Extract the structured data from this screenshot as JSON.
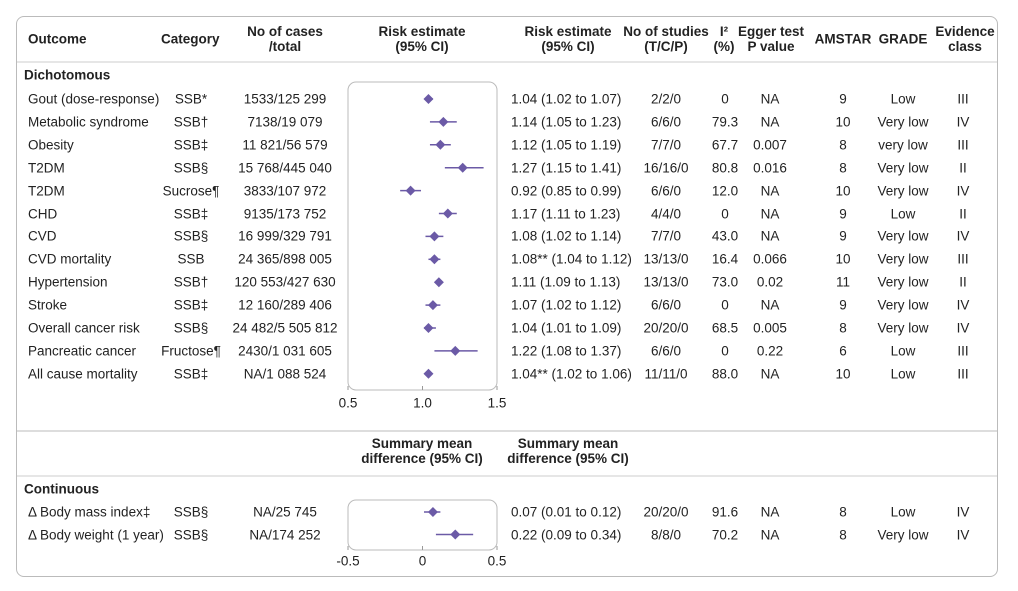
{
  "table": {
    "headers": [
      "Outcome",
      "Category",
      "No of cases\n/total",
      "Risk estimate\n(95% CI)",
      "Risk estimate\n(95% CI)",
      "No of studies\n(T/C/P)",
      "I²\n(%)",
      "Egger test\nP value",
      "AMSTAR",
      "GRADE",
      "Evidence\nclass"
    ],
    "sections": [
      {
        "title": "Dichotomous",
        "rows": [
          [
            "SSB*",
            "1533/125 299",
            "1.04 (1.02 to 1.07)",
            "2/2/0",
            "0",
            "NA",
            "9",
            "Low",
            "III"
          ],
          [
            "SSB†",
            "7138/19 079",
            "1.14 (1.05 to 1.23)",
            "6/6/0",
            "79.3",
            "NA",
            "10",
            "Very low",
            "IV"
          ],
          [
            "SSB‡",
            "11 821/56 579",
            "1.12 (1.05 to 1.19)",
            "7/7/0",
            "67.7",
            "0.007",
            "8",
            "very low",
            "III"
          ],
          [
            "SSB§",
            "15 768/445 040",
            "1.27 (1.15 to 1.41)",
            "16/16/0",
            "80.8",
            "0.016",
            "8",
            "Very low",
            "II"
          ],
          [
            "Sucrose¶",
            "3833/107 972",
            "0.92 (0.85 to 0.99)",
            "6/6/0",
            "12.0",
            "NA",
            "10",
            "Very low",
            "IV"
          ],
          [
            "SSB‡",
            "9135/173 752",
            "1.17 (1.11 to 1.23)",
            "4/4/0",
            "0",
            "NA",
            "9",
            "Low",
            "II"
          ],
          [
            "SSB§",
            "16 999/329 791",
            "1.08 (1.02 to 1.14)",
            "7/7/0",
            "43.0",
            "NA",
            "9",
            "Very low",
            "IV"
          ],
          [
            "SSB",
            "24 365/898 005",
            "1.08** (1.04 to 1.12)",
            "13/13/0",
            "16.4",
            "0.066",
            "10",
            "Very low",
            "III"
          ],
          [
            "SSB†",
            "120 553/427 630",
            "1.11 (1.09 to 1.13)",
            "13/13/0",
            "73.0",
            "0.02",
            "11",
            "Very low",
            "II"
          ],
          [
            "SSB‡",
            "12 160/289 406",
            "1.07 (1.02 to 1.12)",
            "6/6/0",
            "0",
            "NA",
            "9",
            "Very low",
            "IV"
          ],
          [
            "SSB§",
            "24 482/5 505 812",
            "1.04 (1.01 to 1.09)",
            "20/20/0",
            "68.5",
            "0.005",
            "8",
            "Very low",
            "IV"
          ],
          [
            "Fructose¶",
            "2430/1 031 605",
            "1.22 (1.08 to 1.37)",
            "6/6/0",
            "0",
            "0.22",
            "6",
            "Low",
            "III"
          ],
          [
            "SSB‡",
            "NA/1 088 524",
            "1.04** (1.02 to 1.06)",
            "11/11/0",
            "88.0",
            "NA",
            "10",
            "Low",
            "III"
          ]
        ]
      },
      {
        "title": "Continuous",
        "subheaders": [
          "Summary mean\ndifference (95% CI)",
          "Summary mean\ndifference (95% CI)"
        ],
        "rows": [
          [
            "SSB§",
            "NA/25 745",
            "0.07 (0.01 to 0.12)",
            "20/20/0",
            "91.6",
            "NA",
            "8",
            "Low",
            "IV"
          ],
          [
            "SSB§",
            "NA/174 252",
            "0.22 (0.09 to 0.34)",
            "8/8/0",
            "70.2",
            "NA",
            "8",
            "Very low",
            "IV"
          ]
        ]
      }
    ]
  },
  "chart_data": [
    {
      "type": "forest",
      "color": "#6b5aa6",
      "categories": [
        "Gout (dose-response)",
        "Metabolic syndrome",
        "Obesity",
        "T2DM",
        "T2DM",
        "CHD",
        "CVD",
        "CVD mortality",
        "Hypertension",
        "Stroke",
        "Overall cancer risk",
        "Pancreatic cancer",
        "All cause mortality"
      ],
      "values": [
        1.04,
        1.14,
        1.12,
        1.27,
        0.92,
        1.17,
        1.08,
        1.08,
        1.11,
        1.07,
        1.04,
        1.22,
        1.04
      ],
      "lower": [
        1.02,
        1.05,
        1.05,
        1.15,
        0.85,
        1.11,
        1.02,
        1.04,
        1.09,
        1.02,
        1.01,
        1.08,
        1.02
      ],
      "upper": [
        1.07,
        1.23,
        1.19,
        1.41,
        0.99,
        1.23,
        1.14,
        1.12,
        1.13,
        1.12,
        1.09,
        1.37,
        1.06
      ],
      "xlim": [
        0.5,
        1.5
      ],
      "xticks": [
        0.5,
        {
          "value": 1,
          "label": "1.0"
        },
        1.5
      ]
    },
    {
      "type": "forest",
      "color": "#6b5aa6",
      "categories": [
        "Δ Body mass index‡",
        "Δ Body weight (1 year)"
      ],
      "values": [
        0.07,
        0.22
      ],
      "lower": [
        0.01,
        0.09
      ],
      "upper": [
        0.12,
        0.34
      ],
      "xlim": [
        -0.5,
        0.5
      ],
      "xticks": [
        -0.5,
        0,
        0.5
      ]
    }
  ]
}
